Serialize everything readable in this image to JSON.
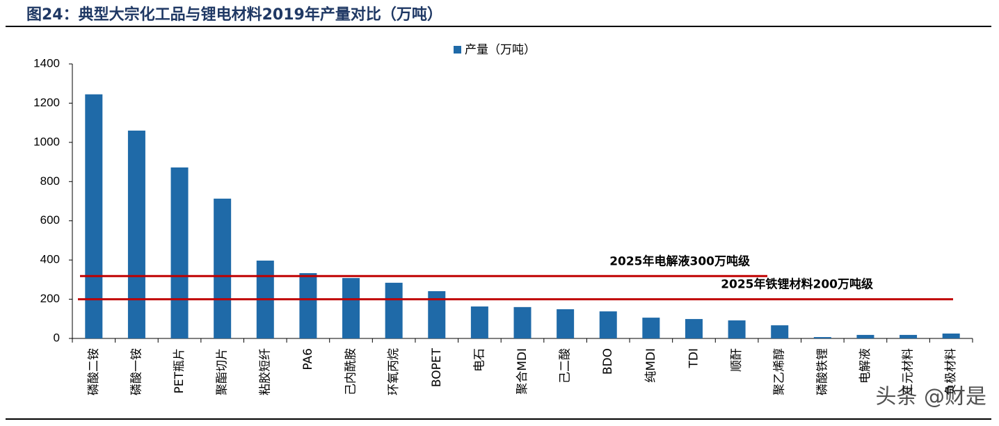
{
  "chart_data": {
    "type": "bar",
    "title": "图24：典型大宗化工品与锂电材料2019年产量对比（万吨）",
    "categories": [
      "磷酸二铵",
      "磷酸一铵",
      "PET瓶片",
      "聚酯切片",
      "粘胶短纤",
      "PA6",
      "己内酰胺",
      "环氧丙烷",
      "BOPET",
      "电石",
      "聚合MDI",
      "己二酸",
      "BDO",
      "纯MDI",
      "TDI",
      "顺酐",
      "聚乙烯醇",
      "磷酸铁锂",
      "电解液",
      "三元材料",
      "负极材料"
    ],
    "series": [
      {
        "name": "产量（万吨）",
        "color": "#1f6aa8",
        "values": [
          1245,
          1060,
          872,
          713,
          397,
          333,
          308,
          284,
          241,
          163,
          160,
          149,
          138,
          106,
          99,
          92,
          67,
          7,
          18,
          18,
          25
        ]
      }
    ],
    "ylim": [
      0,
      1400
    ],
    "yticks": [
      0,
      200,
      400,
      600,
      800,
      1000,
      1200,
      1400
    ],
    "reference_lines": [
      {
        "label": "2025年电解液300万吨级",
        "value": 318,
        "color": "#c00000"
      },
      {
        "label": "2025年铁锂材料200万吨级",
        "value": 200,
        "color": "#c00000"
      }
    ],
    "watermark": "头条 @财是"
  }
}
